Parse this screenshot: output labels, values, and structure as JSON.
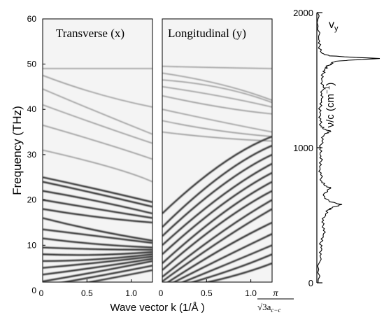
{
  "chart_data": [
    {
      "type": "line",
      "panel": "Transverse (x)",
      "title": "Transverse (x)",
      "xlabel": "Wave vector k (1/Å )",
      "ylabel": "Frequency (THz)",
      "xlim": [
        0,
        1.24
      ],
      "ylim": [
        0,
        60
      ],
      "xticks": [
        "0",
        "0.5",
        "1.0"
      ],
      "yticks": [
        "0",
        "10",
        "20",
        "30",
        "40",
        "50",
        "60"
      ],
      "description_of_marks": "grayscale phonon dispersion intensity map",
      "series": [
        {
          "x": [
            0,
            1.24
          ],
          "y": [
            49.0,
            49.0
          ]
        },
        {
          "x": [
            0,
            0.6,
            1.24
          ],
          "y": [
            47.5,
            43.0,
            40.5
          ]
        },
        {
          "x": [
            0,
            0.6,
            1.24
          ],
          "y": [
            44.5,
            39.5,
            34.5
          ]
        },
        {
          "x": [
            0,
            0.7,
            1.24
          ],
          "y": [
            41.0,
            36.0,
            32.5
          ]
        },
        {
          "x": [
            0,
            0.8,
            1.24
          ],
          "y": [
            36.5,
            32.0,
            29.0
          ]
        },
        {
          "x": [
            0,
            0.9,
            1.24
          ],
          "y": [
            31.0,
            27.0,
            24.0
          ]
        },
        {
          "x": [
            0,
            0.6,
            1.24
          ],
          "y": [
            25.0,
            22.5,
            19.5
          ]
        },
        {
          "x": [
            0,
            0.6,
            1.24
          ],
          "y": [
            24.0,
            21.5,
            18.5
          ]
        },
        {
          "x": [
            0,
            0.6,
            1.24
          ],
          "y": [
            22.0,
            20.0,
            17.0
          ]
        },
        {
          "x": [
            0,
            0.6,
            1.24
          ],
          "y": [
            20.0,
            18.0,
            16.0
          ]
        },
        {
          "x": [
            0,
            0.6,
            1.24
          ],
          "y": [
            18.0,
            16.0,
            15.0
          ]
        },
        {
          "x": [
            0,
            0.6,
            1.24
          ],
          "y": [
            16.0,
            13.0,
            11.0
          ]
        },
        {
          "x": [
            0,
            0.6,
            1.24
          ],
          "y": [
            13.5,
            12.0,
            10.5
          ]
        },
        {
          "x": [
            0,
            0.6,
            1.24
          ],
          "y": [
            11.5,
            10.0,
            9.5
          ]
        },
        {
          "x": [
            0,
            0.6,
            1.24
          ],
          "y": [
            9.5,
            9.0,
            9.0
          ]
        },
        {
          "x": [
            0,
            0.6,
            1.24
          ],
          "y": [
            8.0,
            7.5,
            8.5
          ]
        },
        {
          "x": [
            0,
            0.6,
            1.24
          ],
          "y": [
            6.5,
            6.5,
            8.0
          ]
        },
        {
          "x": [
            0,
            0.6,
            1.24
          ],
          "y": [
            5.0,
            6.0,
            7.5
          ]
        },
        {
          "x": [
            0,
            0.6,
            1.24
          ],
          "y": [
            3.5,
            5.0,
            7.0
          ]
        },
        {
          "x": [
            0,
            0.6,
            1.24
          ],
          "y": [
            2.0,
            4.0,
            6.5
          ]
        },
        {
          "x": [
            0,
            0.6,
            1.24
          ],
          "y": [
            1.0,
            3.0,
            5.5
          ]
        },
        {
          "x": [
            0,
            0.6,
            1.24
          ],
          "y": [
            0.0,
            2.0,
            4.5
          ]
        }
      ]
    },
    {
      "type": "line",
      "panel": "Longitudinal (y)",
      "title": "Longitudinal (y)",
      "xlim": [
        0,
        1.24
      ],
      "ylim": [
        0,
        60
      ],
      "xticks": [
        "0",
        "0.5",
        "1.0"
      ],
      "xtick_extra": "π / √3a_c−c",
      "description_of_marks": "grayscale phonon dispersion intensity map",
      "series": [
        {
          "x": [
            0,
            0.6,
            1.24
          ],
          "y": [
            49.5,
            49.2,
            49.0
          ]
        },
        {
          "x": [
            0,
            0.7,
            1.24
          ],
          "y": [
            48.0,
            46.0,
            42.0
          ]
        },
        {
          "x": [
            0,
            0.7,
            1.24
          ],
          "y": [
            46.5,
            45.5,
            41.5
          ]
        },
        {
          "x": [
            0,
            0.7,
            1.24
          ],
          "y": [
            45.0,
            43.0,
            40.5
          ]
        },
        {
          "x": [
            0,
            0.7,
            1.24
          ],
          "y": [
            43.0,
            40.0,
            39.0
          ]
        },
        {
          "x": [
            0,
            0.7,
            1.24
          ],
          "y": [
            40.0,
            37.0,
            35.0
          ]
        },
        {
          "x": [
            0,
            0.6,
            1.24
          ],
          "y": [
            37.5,
            35.0,
            34.0
          ]
        },
        {
          "x": [
            0,
            0.6,
            1.24
          ],
          "y": [
            35.0,
            33.5,
            33.0
          ]
        },
        {
          "x": [
            0,
            0.7,
            1.24
          ],
          "y": [
            17.0,
            30.0,
            34.0
          ]
        },
        {
          "x": [
            0,
            0.7,
            1.24
          ],
          "y": [
            14.0,
            27.5,
            32.0
          ]
        },
        {
          "x": [
            0,
            0.7,
            1.24
          ],
          "y": [
            12.0,
            25.0,
            30.0
          ]
        },
        {
          "x": [
            0,
            0.7,
            1.24
          ],
          "y": [
            10.0,
            22.5,
            28.0
          ]
        },
        {
          "x": [
            0,
            0.7,
            1.24
          ],
          "y": [
            8.0,
            20.5,
            26.0
          ]
        },
        {
          "x": [
            0,
            0.7,
            1.24
          ],
          "y": [
            6.0,
            18.5,
            24.0
          ]
        },
        {
          "x": [
            0,
            0.7,
            1.24
          ],
          "y": [
            4.5,
            16.5,
            22.0
          ]
        },
        {
          "x": [
            0,
            0.7,
            1.24
          ],
          "y": [
            3.0,
            14.0,
            20.0
          ]
        },
        {
          "x": [
            0,
            0.7,
            1.24
          ],
          "y": [
            2.0,
            12.0,
            18.0
          ]
        },
        {
          "x": [
            0,
            0.7,
            1.24
          ],
          "y": [
            1.0,
            10.0,
            15.0
          ]
        },
        {
          "x": [
            0,
            0.7,
            1.24
          ],
          "y": [
            0.5,
            7.5,
            12.5
          ]
        },
        {
          "x": [
            0,
            0.7,
            1.24
          ],
          "y": [
            0.0,
            5.5,
            10.0
          ]
        },
        {
          "x": [
            0,
            0.7,
            1.24
          ],
          "y": [
            0.0,
            3.5,
            8.0
          ]
        },
        {
          "x": [
            0,
            0.7,
            1.24
          ],
          "y": [
            0.0,
            2.0,
            6.0
          ]
        }
      ]
    },
    {
      "type": "line",
      "panel": "v_y",
      "title_main": "v",
      "title_sub": "y",
      "ylabel_main": "ν/c (cm",
      "ylabel_sup": "−1",
      "ylabel_end": ")",
      "ylim": [
        0,
        2000
      ],
      "yticks": [
        "0",
        "1000",
        "2000"
      ],
      "orientation": "spectrum drawn as intensity vs frequency, frequency on vertical axis",
      "frequency": [
        0,
        100,
        200,
        250,
        300,
        350,
        400,
        450,
        500,
        540,
        560,
        580,
        600,
        650,
        700,
        720,
        750,
        800,
        850,
        900,
        950,
        1000,
        1050,
        1100,
        1120,
        1140,
        1160,
        1200,
        1250,
        1300,
        1350,
        1400,
        1450,
        1500,
        1550,
        1580,
        1600,
        1620,
        1640,
        1650,
        1660,
        1670,
        1680,
        1700,
        1750,
        1800,
        1900,
        2000
      ],
      "intensity": [
        0.02,
        0.03,
        0.05,
        0.08,
        0.06,
        0.1,
        0.12,
        0.08,
        0.14,
        0.18,
        0.25,
        0.4,
        0.2,
        0.1,
        0.22,
        0.12,
        0.08,
        0.06,
        0.05,
        0.07,
        0.05,
        0.06,
        0.08,
        0.12,
        0.22,
        0.1,
        0.07,
        0.05,
        0.06,
        0.05,
        0.07,
        0.08,
        0.1,
        0.08,
        0.1,
        0.12,
        0.16,
        0.22,
        0.3,
        0.6,
        1.0,
        0.55,
        0.2,
        0.08,
        0.04,
        0.03,
        0.02,
        0.01
      ]
    }
  ],
  "labels": {
    "transverse": "Transverse (x)",
    "longitudinal": "Longitudinal (y)",
    "y_axis": "Frequency (THz)",
    "x_axis": "Wave vector k (1/Å )",
    "pi": "π",
    "zone_denominator": "√3a",
    "zone_subscript": "c−c"
  }
}
